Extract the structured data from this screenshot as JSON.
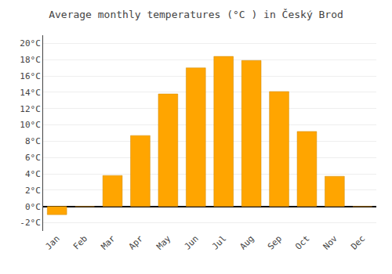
{
  "chart_data": {
    "type": "bar",
    "title": "Average monthly temperatures (°C ) in Český Brod",
    "categories": [
      "Jan",
      "Feb",
      "Mar",
      "Apr",
      "May",
      "Jun",
      "Jul",
      "Aug",
      "Sep",
      "Oct",
      "Nov",
      "Dec"
    ],
    "values": [
      -1.0,
      0.0,
      3.8,
      8.7,
      13.8,
      17.0,
      18.4,
      17.9,
      14.1,
      9.2,
      3.7,
      0.0
    ],
    "color": "#FFA500",
    "ylim": [
      -3,
      21
    ],
    "yticks": [
      {
        "value": -2,
        "label": "-2°C"
      },
      {
        "value": 0,
        "label": "0°C"
      },
      {
        "value": 2,
        "label": "2°C"
      },
      {
        "value": 4,
        "label": "4°C"
      },
      {
        "value": 6,
        "label": "6°C"
      },
      {
        "value": 8,
        "label": "8°C"
      },
      {
        "value": 10,
        "label": "10°C"
      },
      {
        "value": 12,
        "label": "12°C"
      },
      {
        "value": 14,
        "label": "14°C"
      },
      {
        "value": 16,
        "label": "16°C"
      },
      {
        "value": 18,
        "label": "18°C"
      },
      {
        "value": 20,
        "label": "20°C"
      }
    ],
    "grid": true
  }
}
